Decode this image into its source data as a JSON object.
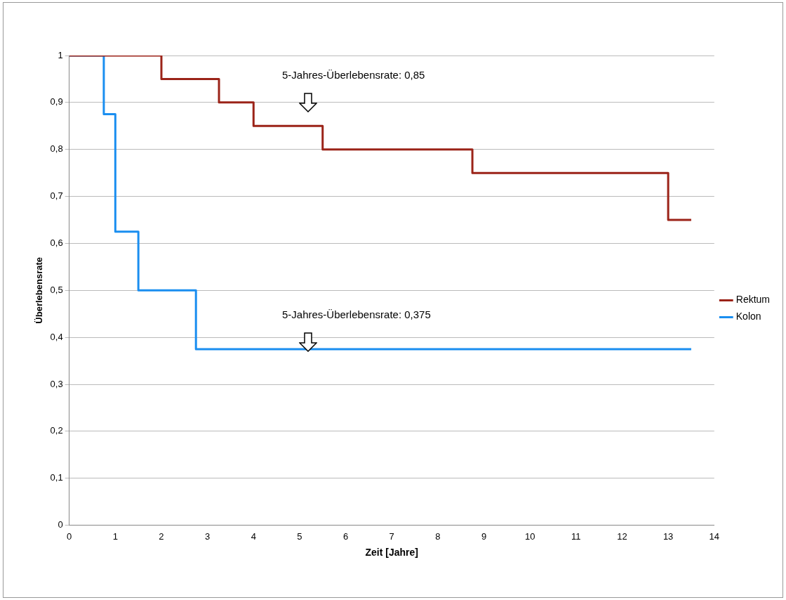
{
  "chart_data": {
    "type": "step",
    "xlabel": "Zeit [Jahre]",
    "ylabel": "Überlebensrate",
    "xlim": [
      0,
      14
    ],
    "xticks": [
      0,
      1,
      2,
      3,
      4,
      5,
      6,
      7,
      8,
      9,
      10,
      11,
      12,
      13,
      14
    ],
    "ylim": [
      0,
      1
    ],
    "yticks": [
      0,
      {
        "value": 0.1,
        "label": "0,1"
      },
      {
        "value": 0.2,
        "label": "0,2"
      },
      {
        "value": 0.3,
        "label": "0,3"
      },
      {
        "value": 0.4,
        "label": "0,4"
      },
      {
        "value": 0.5,
        "label": "0,5"
      },
      {
        "value": 0.6,
        "label": "0,6"
      },
      {
        "value": 0.7,
        "label": "0,7"
      },
      {
        "value": 0.8,
        "label": "0,8"
      },
      {
        "value": 0.9,
        "label": "0,9"
      },
      1
    ],
    "grid": "y",
    "legend": "right",
    "series": [
      {
        "name": "Rektum",
        "color": "#9b2318",
        "x": [
          0,
          2,
          3.25,
          4,
          5.5,
          8.75,
          13,
          13.5
        ],
        "values": [
          1,
          0.95,
          0.9,
          0.85,
          0.8,
          0.75,
          0.65,
          0.65
        ]
      },
      {
        "name": "Kolon",
        "color": "#1a8ef0",
        "x": [
          0,
          0.75,
          1,
          1.5,
          2.75,
          13.5
        ],
        "values": [
          1,
          0.875,
          0.625,
          0.5,
          0.375,
          0.375
        ]
      }
    ],
    "annotations": [
      "5-Jahres-Überlebensrate: 0,85",
      "5-Jahres-Überlebensrate: 0,375"
    ]
  }
}
